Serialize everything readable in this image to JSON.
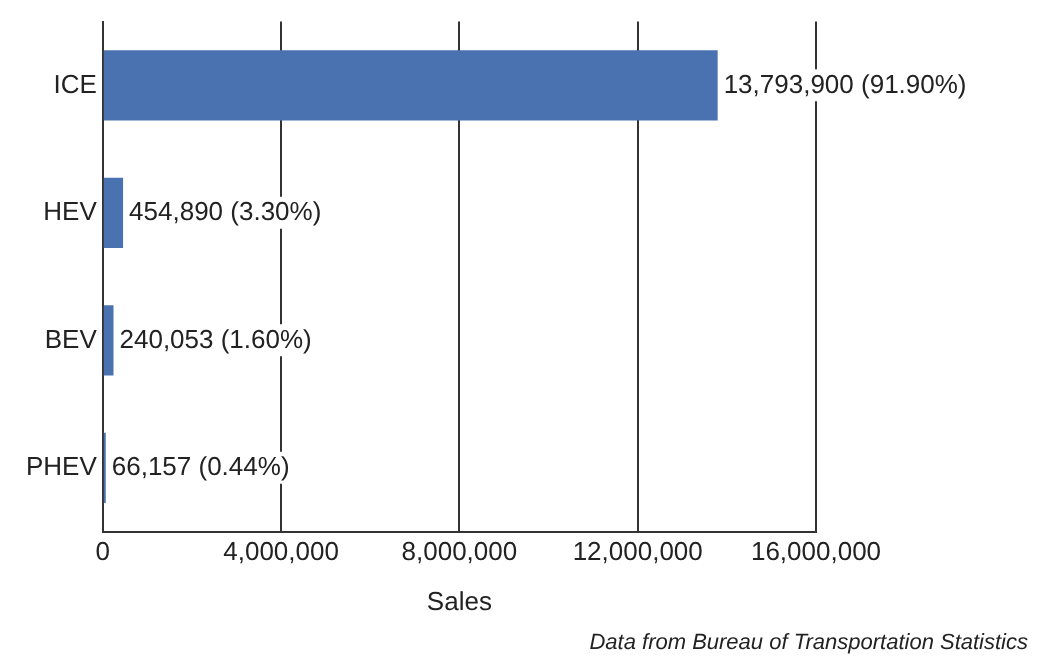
{
  "chart_data": {
    "type": "bar",
    "orientation": "horizontal",
    "categories": [
      "ICE",
      "HEV",
      "BEV",
      "PHEV"
    ],
    "values": [
      13793900,
      454890,
      240053,
      66157
    ],
    "value_labels": [
      "13,793,900 (91.90%)",
      "454,890 (3.30%)",
      "240,053 (1.60%)",
      "66,157 (0.44%)"
    ],
    "color": "#4a72b0",
    "xlim": [
      0,
      16000000
    ],
    "xticks": [
      0,
      {
        "value": 4000000,
        "label": "4,000,000"
      },
      {
        "value": 8000000,
        "label": "8,000,000"
      },
      {
        "value": 12000000,
        "label": "12,000,000"
      },
      {
        "value": 16000000,
        "label": "16,000,000"
      }
    ],
    "xlabel": "Sales",
    "grid": "x",
    "legend": false,
    "annotations": [
      "Data from Bureau of Transportation Statistics"
    ]
  }
}
